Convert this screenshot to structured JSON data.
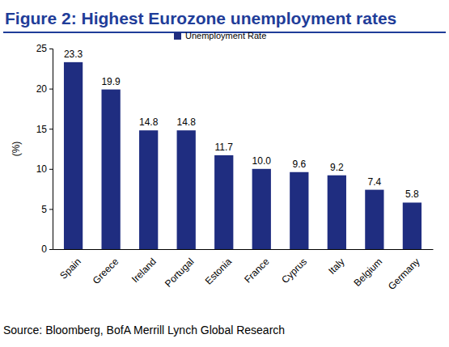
{
  "chart_data": {
    "type": "bar",
    "title": "Figure 2: Highest Eurozone unemployment rates",
    "y_label": "(%)",
    "categories": [
      "Spain",
      "Greece",
      "Ireland",
      "Portugal",
      "Estonia",
      "France",
      "Cyprus",
      "Italy",
      "Belgium",
      "Germany"
    ],
    "series": [
      {
        "name": "Unemployment Rate",
        "color": "#1f2d80",
        "values": [
          23.3,
          19.9,
          14.8,
          14.8,
          11.7,
          10.0,
          9.6,
          9.2,
          7.4,
          5.8
        ],
        "value_labels": [
          "23.3",
          "19.9",
          "14.8",
          "14.8",
          "11.7",
          "10.0",
          "9.6",
          "9.2",
          "7.4",
          "5.8"
        ]
      }
    ],
    "ylim": [
      0,
      25
    ],
    "yticks": [
      0,
      5,
      10,
      15,
      20,
      25
    ],
    "grid": false,
    "legend": "top",
    "data_labels": true,
    "source": "Source: Bloomberg, BofA Merrill Lynch Global Research"
  }
}
